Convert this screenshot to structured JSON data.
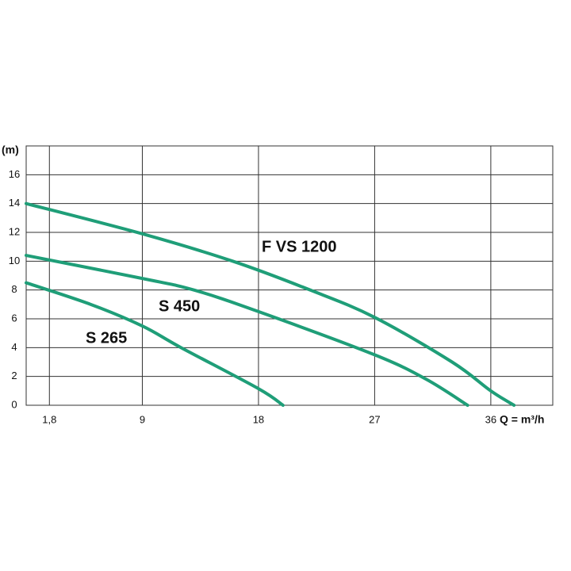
{
  "chart_data": {
    "type": "line",
    "y_label": "(m)",
    "x_label": "Q = m³/h",
    "xlim": [
      0,
      40.8
    ],
    "ylim": [
      0,
      18
    ],
    "xticks": [
      {
        "value": 1.8,
        "label": "1,8"
      },
      9,
      18,
      27,
      36
    ],
    "yticks": [
      0,
      2,
      4,
      6,
      8,
      10,
      12,
      14,
      16
    ],
    "grid": true,
    "series": [
      {
        "name": "F VS 1200",
        "color": "#1f9e78",
        "x": [
          0,
          9,
          16,
          22,
          27,
          33,
          36,
          37.8
        ],
        "values": [
          14,
          11.9,
          10,
          8,
          6.1,
          3,
          1,
          0
        ]
      },
      {
        "name": "S 450",
        "color": "#1f9e78",
        "x": [
          0,
          9,
          13,
          18,
          27,
          31,
          34.2
        ],
        "values": [
          10.4,
          8.8,
          8,
          6.5,
          3.5,
          1.8,
          0
        ]
      },
      {
        "name": "S 265",
        "color": "#1f9e78",
        "x": [
          0,
          5,
          9,
          12,
          18,
          19.9
        ],
        "values": [
          8.5,
          7,
          5.5,
          4,
          1.15,
          0
        ]
      }
    ]
  }
}
